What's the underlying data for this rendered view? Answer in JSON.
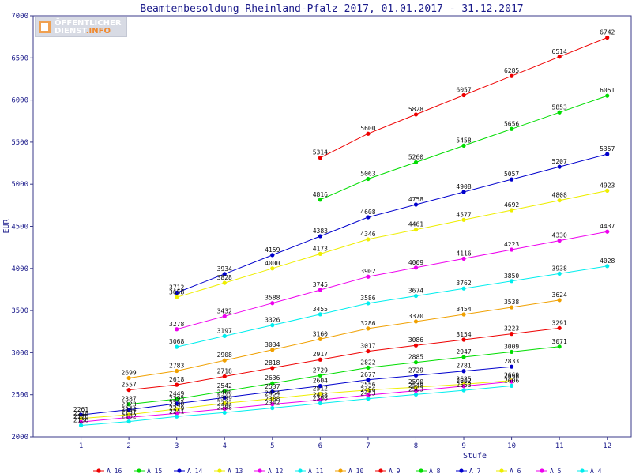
{
  "logo": {
    "line1": "ÖFFENTLICHER",
    "line2_a": "DIENST",
    "line2_b": ".INFO"
  },
  "chart_data": {
    "type": "line",
    "title": "Beamtenbesoldung Rheinland-Pfalz 2017, 01.01.2017 - 31.12.2017",
    "xlabel": "Stufe",
    "ylabel": "EUR",
    "xlim": [
      0,
      12.5
    ],
    "ylim": [
      2000,
      7000
    ],
    "xticks": [
      1,
      2,
      3,
      4,
      5,
      6,
      7,
      8,
      9,
      10,
      11,
      12
    ],
    "yticks": [
      2000,
      2500,
      3000,
      3500,
      4000,
      4500,
      5000,
      5500,
      6000,
      6500,
      7000
    ],
    "grid": false,
    "legend_position": "bottom",
    "series": [
      {
        "name": "A_16",
        "color": "#ee0000",
        "x": [
          6,
          7,
          8,
          9,
          10,
          11,
          12
        ],
        "values": [
          5314,
          5600,
          5828,
          6057,
          6285,
          6514,
          6742
        ]
      },
      {
        "name": "A_15",
        "color": "#00dd00",
        "x": [
          6,
          7,
          8,
          9,
          10,
          11,
          12
        ],
        "values": [
          4816,
          5063,
          5260,
          5458,
          5656,
          5853,
          6051
        ]
      },
      {
        "name": "A_14",
        "color": "#0000cc",
        "x": [
          3,
          4,
          5,
          6,
          7,
          8,
          9,
          10,
          11,
          12
        ],
        "values": [
          3712,
          3934,
          4159,
          4383,
          4608,
          4758,
          4908,
          5057,
          5207,
          5357
        ]
      },
      {
        "name": "A_13",
        "color": "#eeee00",
        "x": [
          3,
          4,
          5,
          6,
          7,
          8,
          9,
          10,
          11,
          12
        ],
        "values": [
          3658,
          3828,
          4000,
          4173,
          4346,
          4461,
          4577,
          4692,
          4808,
          4923
        ]
      },
      {
        "name": "A_12",
        "color": "#ee00ee",
        "x": [
          3,
          4,
          5,
          6,
          7,
          8,
          9,
          10,
          11,
          12
        ],
        "values": [
          3278,
          3432,
          3588,
          3745,
          3902,
          4009,
          4116,
          4223,
          4330,
          4437
        ]
      },
      {
        "name": "A_11",
        "color": "#00eeee",
        "x": [
          3,
          4,
          5,
          6,
          7,
          8,
          9,
          10,
          11,
          12
        ],
        "values": [
          3068,
          3197,
          3326,
          3455,
          3586,
          3674,
          3762,
          3850,
          3938,
          4028
        ]
      },
      {
        "name": "A_10",
        "color": "#f0a000",
        "x": [
          2,
          3,
          4,
          5,
          6,
          7,
          8,
          9,
          10,
          11
        ],
        "values": [
          2699,
          2783,
          2908,
          3034,
          3160,
          3286,
          3370,
          3454,
          3538,
          3624
        ]
      },
      {
        "name": "A_9",
        "color": "#ee0000",
        "x": [
          2,
          3,
          4,
          5,
          6,
          7,
          8,
          9,
          10,
          11
        ],
        "values": [
          2557,
          2618,
          2718,
          2818,
          2917,
          3017,
          3086,
          3154,
          3223,
          3291
        ]
      },
      {
        "name": "A_8",
        "color": "#00dd00",
        "x": [
          2,
          3,
          4,
          5,
          6,
          7,
          8,
          9,
          10,
          11
        ],
        "values": [
          2387,
          2449,
          2542,
          2636,
          2729,
          2822,
          2885,
          2947,
          3009,
          3071
        ]
      },
      {
        "name": "A_7",
        "color": "#0000cc",
        "x": [
          1,
          2,
          3,
          4,
          5,
          6,
          7,
          8,
          9,
          10
        ],
        "values": [
          2261,
          2323,
          2395,
          2466,
          2537,
          2604,
          2677,
          2729,
          2781,
          2833
        ]
      },
      {
        "name": "A_6",
        "color": "#eeee00",
        "x": [
          1,
          2,
          3,
          4,
          5,
          6,
          7,
          8,
          9,
          10
        ],
        "values": [
          2218,
          2264,
          2330,
          2399,
          2454,
          2512,
          2556,
          2590,
          2625,
          2669
        ]
      },
      {
        "name": "A_5",
        "color": "#ee00ee",
        "x": [
          1,
          2,
          3,
          4,
          5,
          6,
          7,
          8,
          9,
          10
        ],
        "values": [
          2176,
          2231,
          2279,
          2333,
          2388,
          2438,
          2496,
          2548,
          2602,
          2656
        ]
      },
      {
        "name": "A_4",
        "color": "#00eeee",
        "x": [
          1,
          2,
          3,
          4,
          5,
          6,
          7,
          8,
          9,
          10
        ],
        "values": [
          2136,
          2182,
          2241,
          2288,
          2342,
          2398,
          2453,
          2503,
          2553,
          2606
        ]
      }
    ]
  }
}
